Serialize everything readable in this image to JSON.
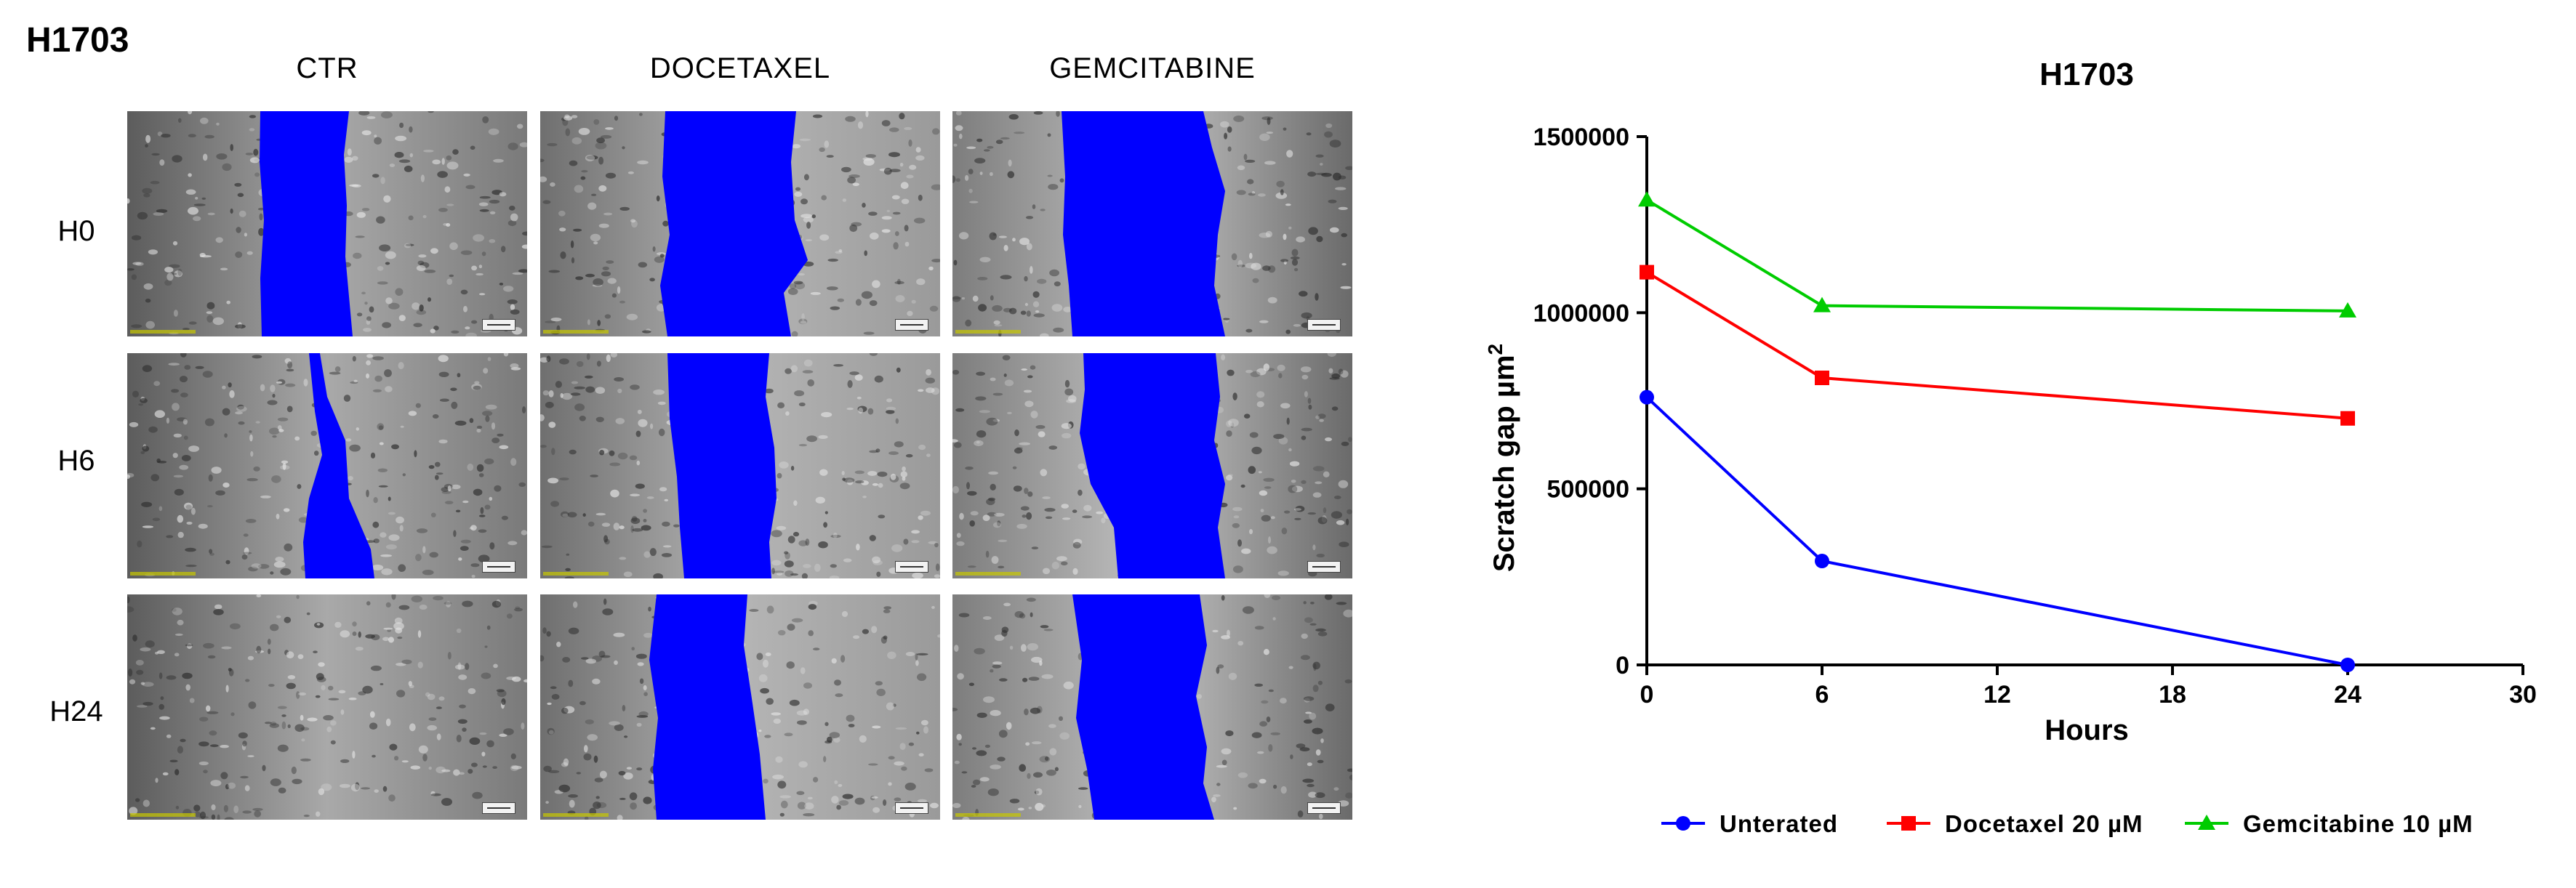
{
  "figure": {
    "panel_title": "H1703",
    "columns": [
      "CTR",
      "DOCETAXEL",
      "GEMCITABINE"
    ],
    "rows": [
      "H0",
      "H6",
      "H24"
    ],
    "gap_color": "#0000ff"
  },
  "chart_data": {
    "type": "line",
    "title": "H1703",
    "xlabel": "Hours",
    "ylabel": "Scratch gap µm",
    "ylabel_superscript": "2",
    "xlim": [
      0,
      30
    ],
    "ylim": [
      0,
      1500000
    ],
    "x_ticks": [
      "0",
      "6",
      "12",
      "18",
      "24",
      "30"
    ],
    "y_ticks": [
      "0",
      "500000",
      "1000000",
      "1500000"
    ],
    "grid": false,
    "legend_position": "bottom",
    "series": [
      {
        "name": "Unterated",
        "color": "#0000ff",
        "marker": "circle",
        "x": [
          0,
          6,
          24
        ],
        "y": [
          760000,
          295000,
          0
        ]
      },
      {
        "name": "Docetaxel 20 µM",
        "color": "#ff0000",
        "marker": "square",
        "x": [
          0,
          6,
          24
        ],
        "y": [
          1115000,
          815000,
          700000
        ]
      },
      {
        "name": "Gemcitabine 10 µM",
        "color": "#00cc00",
        "marker": "triangle",
        "x": [
          0,
          6,
          24
        ],
        "y": [
          1320000,
          1020000,
          1005000
        ]
      }
    ]
  }
}
